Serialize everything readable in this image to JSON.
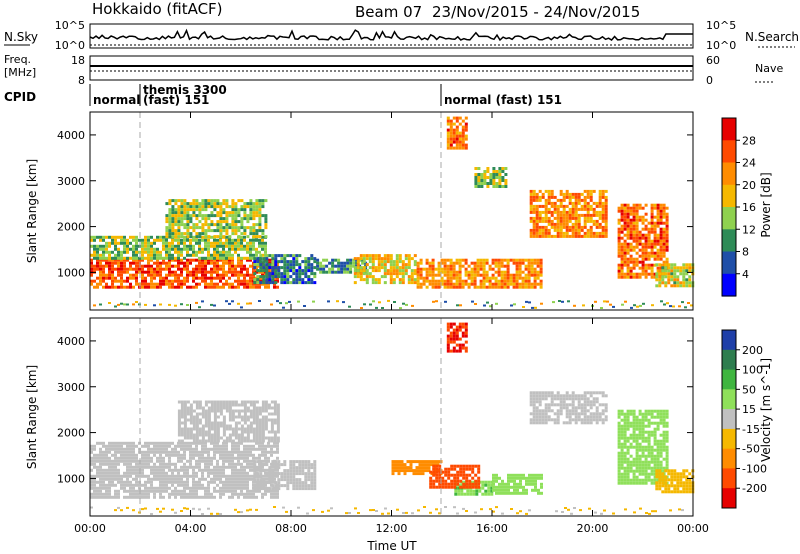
{
  "header": {
    "station": "Hokkaido (fitACF)",
    "beam": "Beam 07",
    "date_range": "23/Nov/2015 - 24/Nov/2015"
  },
  "noise_panel": {
    "left_label": "N.Sky",
    "right_label": "N.Search",
    "ticks_left": [
      "10^5",
      "10^0"
    ],
    "ticks_right": [
      "10^5",
      "10^0"
    ]
  },
  "freq_panel": {
    "left_label_1": "Freq.",
    "left_label_2": "[MHz]",
    "ticks_left": [
      "18",
      "8"
    ],
    "ticks_right": [
      "60",
      "0"
    ],
    "right_label": "Nave"
  },
  "cpid_panel": {
    "label": "CPID",
    "entries": [
      {
        "start_h": 0.0,
        "text": "normal"
      },
      {
        "start_h": 2.0,
        "text_top": "themis 3300",
        "text": "(fast) 151"
      },
      {
        "start_h": 14.0,
        "text": "normal (fast) 151"
      }
    ]
  },
  "axes": {
    "ylabel": "Slant Range [km]",
    "xlabel": "Time UT",
    "x_ticks": [
      "00:00",
      "04:00",
      "08:00",
      "12:00",
      "16:00",
      "20:00",
      "00:00"
    ],
    "y_ticks": [
      "1000",
      "2000",
      "3000",
      "4000"
    ]
  },
  "power_scale": {
    "label": "Power [dB]",
    "ticks": [
      "28",
      "24",
      "20",
      "16",
      "12",
      "8",
      "4"
    ],
    "colors": [
      "#e60000",
      "#ff4a00",
      "#ff8c00",
      "#f5b800",
      "#8fd14f",
      "#2e8b57",
      "#1f4fa8",
      "#0000ff"
    ]
  },
  "velocity_scale": {
    "label": "Velocity [m s^-1]",
    "ticks": [
      "200",
      "100",
      "50",
      "15",
      "-15",
      "-50",
      "-100",
      "-200"
    ],
    "colors": [
      "#1f3fa8",
      "#2e7d4f",
      "#3fb53f",
      "#8fe05a",
      "#c0c0c0",
      "#f5b800",
      "#ff8c00",
      "#ff4a00",
      "#e60000"
    ]
  },
  "chart_data": {
    "type": "heatmap",
    "x_range_hours": [
      0,
      24
    ],
    "y_range_km": [
      180,
      4500
    ],
    "power_regions": [
      {
        "t0": 0.0,
        "t1": 7.5,
        "r0": 700,
        "r1": 1300,
        "power": 26
      },
      {
        "t0": 0.0,
        "t1": 7.0,
        "r0": 1300,
        "r1": 1800,
        "power": 14
      },
      {
        "t0": 3.0,
        "t1": 7.0,
        "r0": 1800,
        "r1": 2600,
        "power": 14
      },
      {
        "t0": 6.5,
        "t1": 9.0,
        "r0": 800,
        "r1": 1400,
        "power": 8
      },
      {
        "t0": 9.0,
        "t1": 11.0,
        "r0": 1000,
        "r1": 1300,
        "power": 10
      },
      {
        "t0": 10.5,
        "t1": 13.0,
        "r0": 800,
        "r1": 1400,
        "power": 18
      },
      {
        "t0": 13.0,
        "t1": 18.0,
        "r0": 650,
        "r1": 1300,
        "power": 22
      },
      {
        "t0": 14.2,
        "t1": 15.0,
        "r0": 3700,
        "r1": 4400,
        "power": 24
      },
      {
        "t0": 15.3,
        "t1": 16.5,
        "r0": 2900,
        "r1": 3300,
        "power": 14
      },
      {
        "t0": 17.5,
        "t1": 20.5,
        "r0": 1800,
        "r1": 2800,
        "power": 22
      },
      {
        "t0": 21.0,
        "t1": 23.0,
        "r0": 900,
        "r1": 2500,
        "power": 24
      },
      {
        "t0": 22.5,
        "t1": 24.0,
        "r0": 700,
        "r1": 1200,
        "power": 16
      }
    ],
    "velocity_regions": [
      {
        "t0": 0.0,
        "t1": 7.5,
        "r0": 600,
        "r1": 1800,
        "velocity": 0
      },
      {
        "t0": 3.5,
        "t1": 7.5,
        "r0": 1800,
        "r1": 2700,
        "velocity": 0
      },
      {
        "t0": 6.5,
        "t1": 9.0,
        "r0": 800,
        "r1": 1400,
        "velocity": 0
      },
      {
        "t0": 12.0,
        "t1": 14.0,
        "r0": 1100,
        "r1": 1400,
        "velocity": -60
      },
      {
        "t0": 14.5,
        "t1": 16.0,
        "r0": 650,
        "r1": 950,
        "velocity": 45
      },
      {
        "t0": 13.5,
        "t1": 15.5,
        "r0": 800,
        "r1": 1300,
        "velocity": -150
      },
      {
        "t0": 14.2,
        "t1": 15.0,
        "r0": 3800,
        "r1": 4400,
        "velocity": -200
      },
      {
        "t0": 16.0,
        "t1": 18.0,
        "r0": 700,
        "r1": 1100,
        "velocity": 25
      },
      {
        "t0": 17.5,
        "t1": 20.5,
        "r0": 2200,
        "r1": 2900,
        "velocity": 0
      },
      {
        "t0": 21.0,
        "t1": 23.0,
        "r0": 900,
        "r1": 2500,
        "velocity": 30
      },
      {
        "t0": 22.5,
        "t1": 24.0,
        "r0": 700,
        "r1": 1200,
        "velocity": -30
      }
    ],
    "ground_scatter_band_km": [
      200,
      400
    ]
  }
}
